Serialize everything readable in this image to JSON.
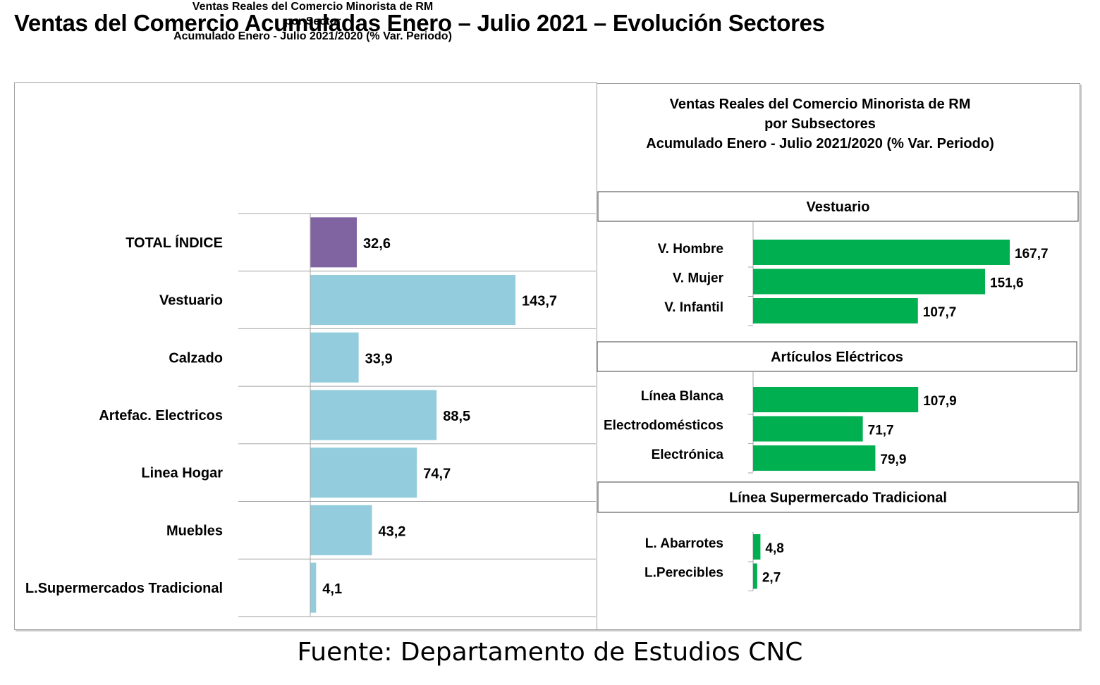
{
  "title": "Ventas del Comercio Acumuladas Enero – Julio 2021 – Evolución Sectores",
  "source": "Fuente: Departamento de Estudios CNC",
  "colors": {
    "total": "#8064a2",
    "sector": "#93cddd",
    "subsector": "#00b050",
    "grid": "#a6a6a6"
  },
  "chart_data": [
    {
      "type": "bar",
      "orientation": "horizontal",
      "title": [
        "Ventas Reales del Comercio Minorista de RM",
        "por Sector",
        "Acumulado Enero - Julio 2021/2020 (% Var. Periodo)"
      ],
      "categories": [
        "TOTAL ÍNDICE",
        "Vestuario",
        "Calzado",
        "Artefac. Electricos",
        "Linea Hogar",
        "Muebles",
        "L.Supermercados Tradicional"
      ],
      "values": [
        32.6,
        143.7,
        33.9,
        88.5,
        74.7,
        43.2,
        4.1
      ],
      "value_labels": [
        "32,6",
        "143,7",
        "33,9",
        "88,5",
        "74,7",
        "43,2",
        "4,1"
      ],
      "gridlines": true
    },
    {
      "type": "bar",
      "orientation": "horizontal",
      "title": [
        "Ventas Reales del Comercio Minorista de RM",
        "por Subsectores",
        "Acumulado Enero - Julio 2021/2020 (% Var. Periodo)"
      ],
      "groups": [
        {
          "name": "Vestuario",
          "categories": [
            "V. Hombre",
            "V. Mujer",
            "V. Infantil"
          ],
          "values": [
            167.7,
            151.6,
            107.7
          ],
          "value_labels": [
            "167,7",
            "151,6",
            "107,7"
          ]
        },
        {
          "name": "Artículos Eléctricos",
          "categories": [
            "Línea Blanca",
            "Electrodomésticos",
            "Electrónica"
          ],
          "values": [
            107.9,
            71.7,
            79.9
          ],
          "value_labels": [
            "107,9",
            "71,7",
            "79,9"
          ]
        },
        {
          "name": "Línea  Supermercado Tradicional",
          "categories": [
            "L. Abarrotes",
            "L.Perecibles"
          ],
          "values": [
            4.8,
            2.7
          ],
          "value_labels": [
            "4,8",
            "2,7"
          ]
        }
      ]
    }
  ]
}
